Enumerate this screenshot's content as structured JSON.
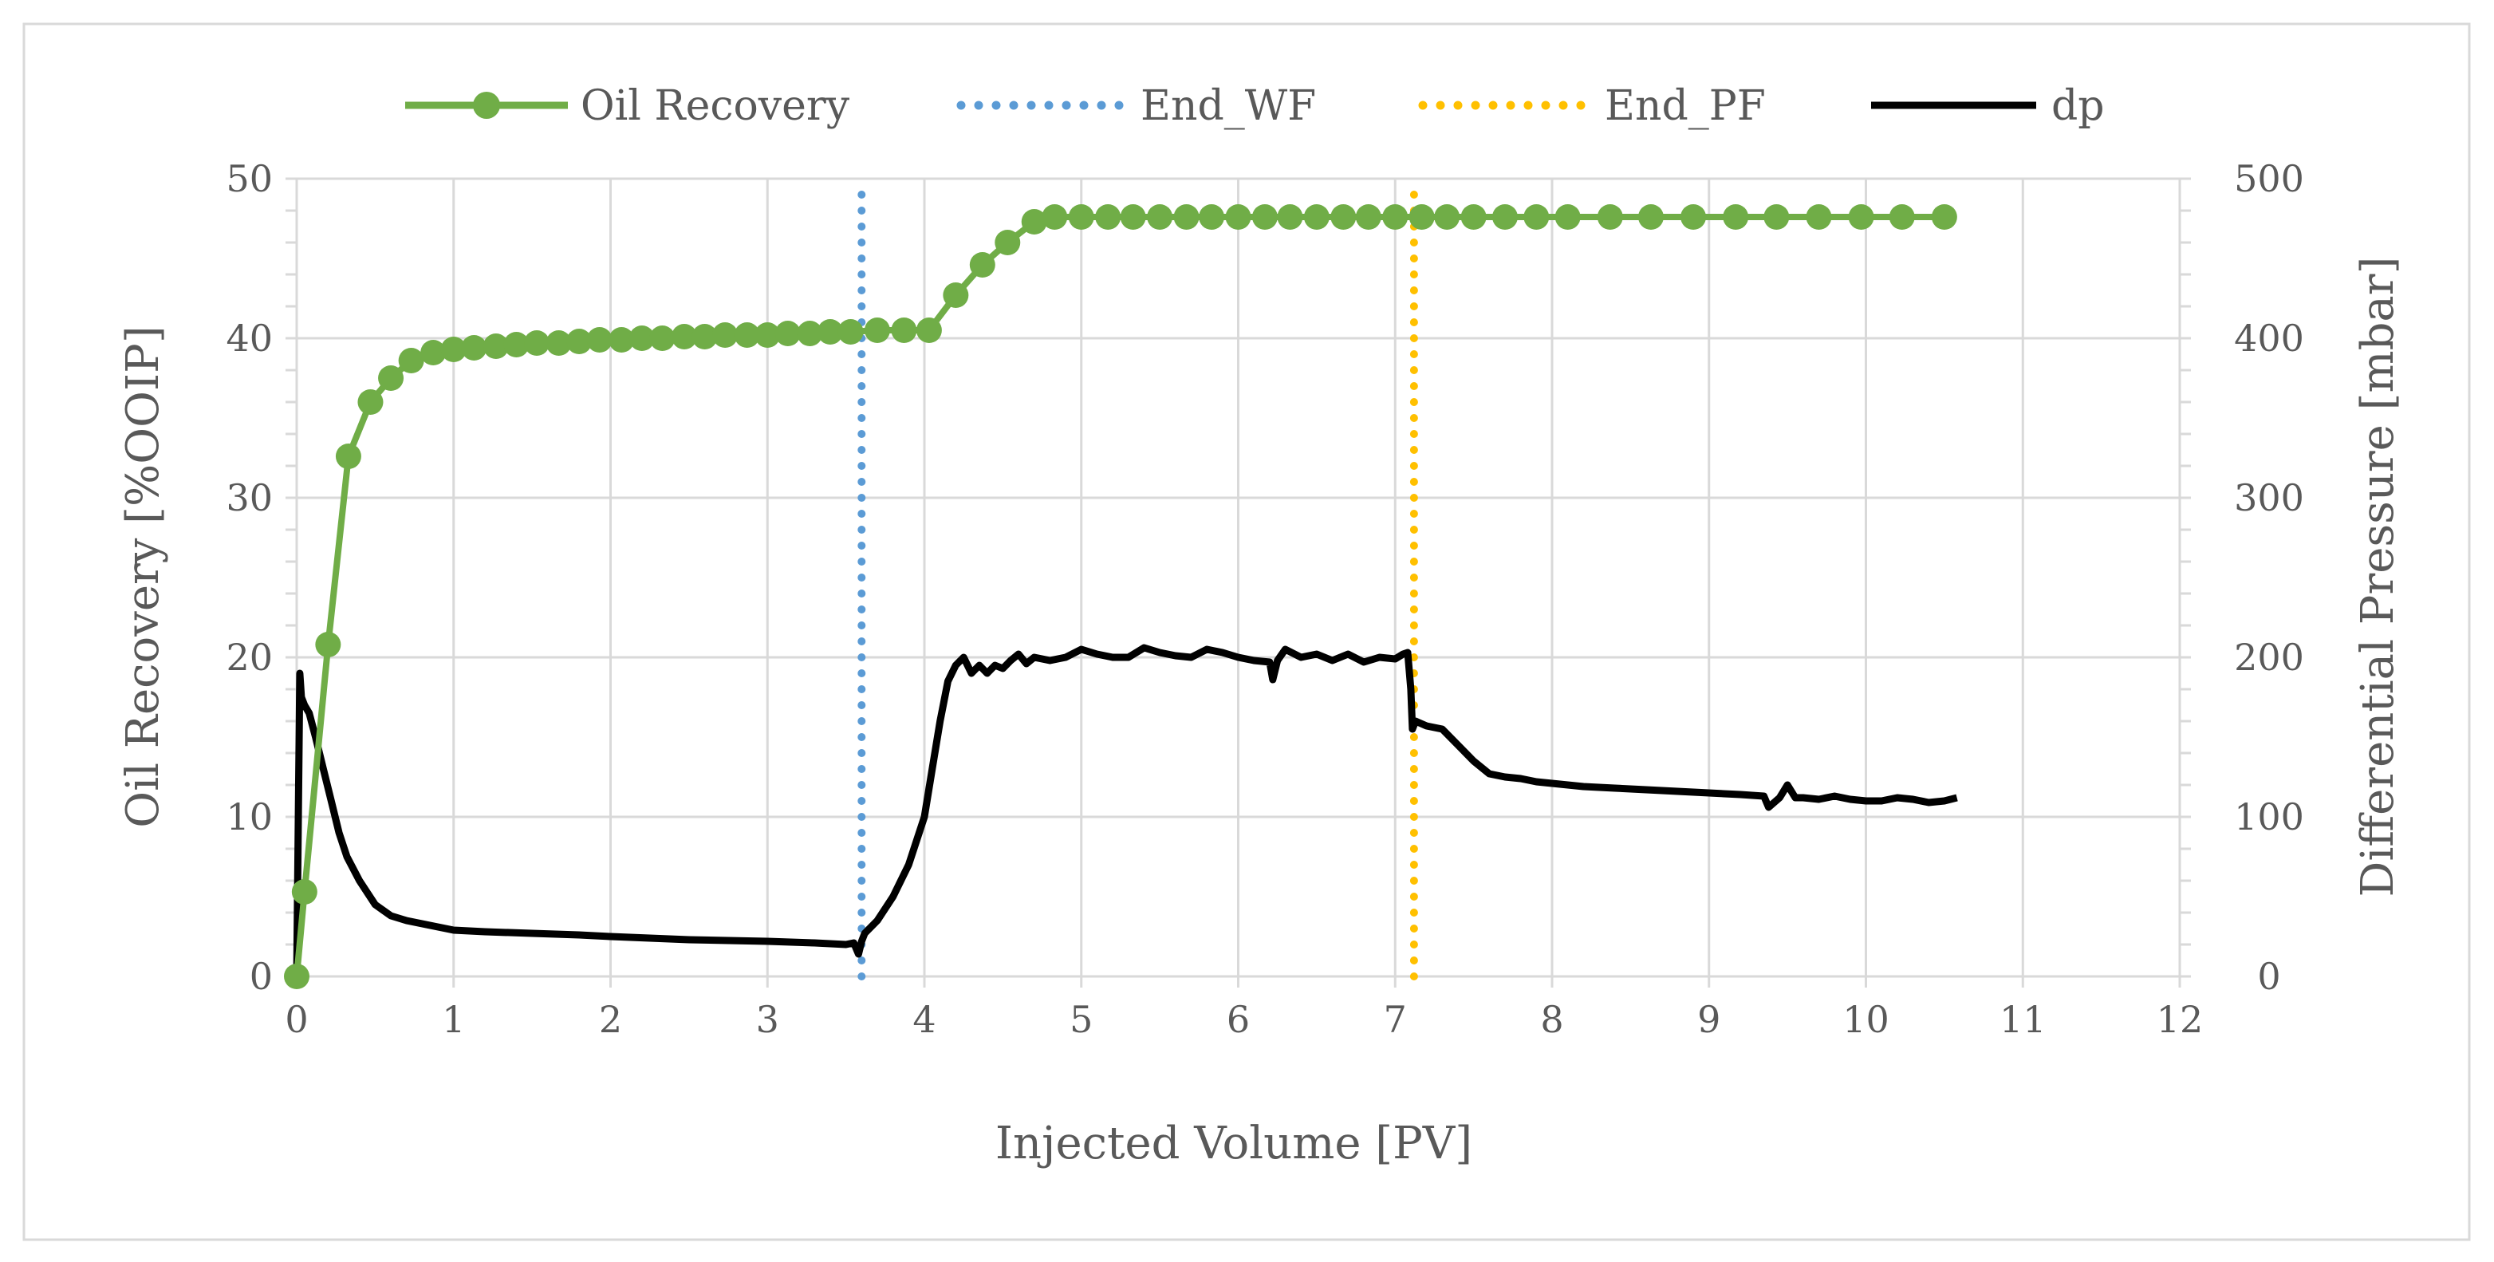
{
  "chart_data": {
    "type": "line",
    "xlabel": "Injected Volume [PV]",
    "ylabel": "Oil Recovery [%OOIP]",
    "y2label": "Differential Pressure [mbar]",
    "xlim": [
      0,
      12
    ],
    "ylim": [
      0,
      50
    ],
    "y2lim": [
      0,
      500
    ],
    "xticks": [
      "0",
      "1",
      "2",
      "3",
      "4",
      "5",
      "6",
      "7",
      "8",
      "9",
      "10",
      "11",
      "12"
    ],
    "yticks": [
      "0",
      "10",
      "20",
      "30",
      "40",
      "50"
    ],
    "y2ticks": [
      "0",
      "100",
      "200",
      "300",
      "400",
      "500"
    ],
    "grid": true,
    "legend_position": "top",
    "legend": [
      "Oil Recovery",
      "End_WF",
      "End_PF",
      "dp"
    ],
    "colors": {
      "oil_recovery": "#70ad47",
      "end_wf": "#5b9bd5",
      "end_pf": "#ffc000",
      "dp": "#000000",
      "grid": "#d9d9d9"
    },
    "series": [
      {
        "name": "Oil Recovery",
        "axis": "left",
        "marker": "circle",
        "x": [
          0,
          0.05,
          0.2,
          0.33,
          0.47,
          0.6,
          0.73,
          0.87,
          1.0,
          1.13,
          1.27,
          1.4,
          1.53,
          1.67,
          1.8,
          1.93,
          2.07,
          2.2,
          2.33,
          2.47,
          2.6,
          2.73,
          2.87,
          3.0,
          3.13,
          3.27,
          3.4,
          3.53,
          3.7,
          3.87,
          4.03,
          4.2,
          4.37,
          4.53,
          4.7,
          4.83,
          5.0,
          5.17,
          5.33,
          5.5,
          5.67,
          5.83,
          6.0,
          6.17,
          6.33,
          6.5,
          6.67,
          6.83,
          7.0,
          7.17,
          7.33,
          7.5,
          7.7,
          7.9,
          8.1,
          8.37,
          8.63,
          8.9,
          9.17,
          9.43,
          9.7,
          9.97,
          10.23,
          10.5
        ],
        "y": [
          0,
          5.3,
          20.8,
          32.6,
          36.0,
          37.5,
          38.6,
          39.1,
          39.3,
          39.4,
          39.5,
          39.6,
          39.7,
          39.7,
          39.8,
          39.9,
          39.9,
          40.0,
          40.0,
          40.1,
          40.1,
          40.2,
          40.2,
          40.2,
          40.3,
          40.3,
          40.4,
          40.4,
          40.5,
          40.5,
          40.5,
          42.7,
          44.6,
          46.0,
          47.3,
          47.6,
          47.6,
          47.6,
          47.6,
          47.6,
          47.6,
          47.6,
          47.6,
          47.6,
          47.6,
          47.6,
          47.6,
          47.6,
          47.6,
          47.6,
          47.6,
          47.6,
          47.6,
          47.6,
          47.6,
          47.6,
          47.6,
          47.6,
          47.6,
          47.6,
          47.6,
          47.6,
          47.6,
          47.6
        ]
      },
      {
        "name": "End_WF",
        "axis": "left",
        "style": "dotted",
        "x": [
          3.6,
          3.6
        ],
        "y": [
          0,
          50
        ]
      },
      {
        "name": "End_PF",
        "axis": "left",
        "style": "dotted",
        "x": [
          7.12,
          7.12
        ],
        "y": [
          0,
          50
        ]
      },
      {
        "name": "dp",
        "axis": "right",
        "x": [
          0,
          0.02,
          0.03,
          0.05,
          0.08,
          0.12,
          0.17,
          0.22,
          0.27,
          0.32,
          0.4,
          0.5,
          0.6,
          0.7,
          0.85,
          1.0,
          1.2,
          1.5,
          1.8,
          2.0,
          2.5,
          3.0,
          3.3,
          3.5,
          3.55,
          3.58,
          3.6,
          3.62,
          3.7,
          3.8,
          3.9,
          4.0,
          4.05,
          4.1,
          4.15,
          4.2,
          4.25,
          4.3,
          4.35,
          4.4,
          4.45,
          4.5,
          4.55,
          4.6,
          4.65,
          4.7,
          4.8,
          4.9,
          5.0,
          5.1,
          5.2,
          5.3,
          5.4,
          5.5,
          5.6,
          5.7,
          5.8,
          5.9,
          6.0,
          6.1,
          6.2,
          6.22,
          6.25,
          6.3,
          6.4,
          6.5,
          6.6,
          6.7,
          6.8,
          6.9,
          7.0,
          7.05,
          7.08,
          7.1,
          7.11,
          7.13,
          7.2,
          7.3,
          7.4,
          7.5,
          7.6,
          7.7,
          7.8,
          7.9,
          8.0,
          8.2,
          8.4,
          8.6,
          8.8,
          9.0,
          9.2,
          9.35,
          9.38,
          9.45,
          9.5,
          9.55,
          9.6,
          9.7,
          9.8,
          9.9,
          10.0,
          10.1,
          10.2,
          10.3,
          10.4,
          10.5,
          10.58
        ],
        "y": [
          0,
          190,
          175,
          170,
          165,
          150,
          130,
          110,
          90,
          75,
          60,
          45,
          38,
          35,
          32,
          29,
          28,
          27,
          26,
          25,
          23,
          22,
          21,
          20,
          21,
          14,
          22,
          27,
          35,
          50,
          70,
          100,
          130,
          160,
          185,
          195,
          200,
          190,
          195,
          190,
          195,
          193,
          198,
          202,
          196,
          200,
          198,
          200,
          205,
          202,
          200,
          200,
          206,
          203,
          201,
          200,
          205,
          203,
          200,
          198,
          197,
          186,
          198,
          205,
          200,
          202,
          198,
          202,
          197,
          200,
          199,
          202,
          203,
          180,
          155,
          160,
          157,
          155,
          145,
          135,
          127,
          125,
          124,
          122,
          121,
          119,
          118,
          117,
          116,
          115,
          114,
          113,
          106,
          112,
          120,
          112,
          112,
          111,
          113,
          111,
          110,
          110,
          112,
          111,
          109,
          110,
          112
        ]
      }
    ]
  }
}
